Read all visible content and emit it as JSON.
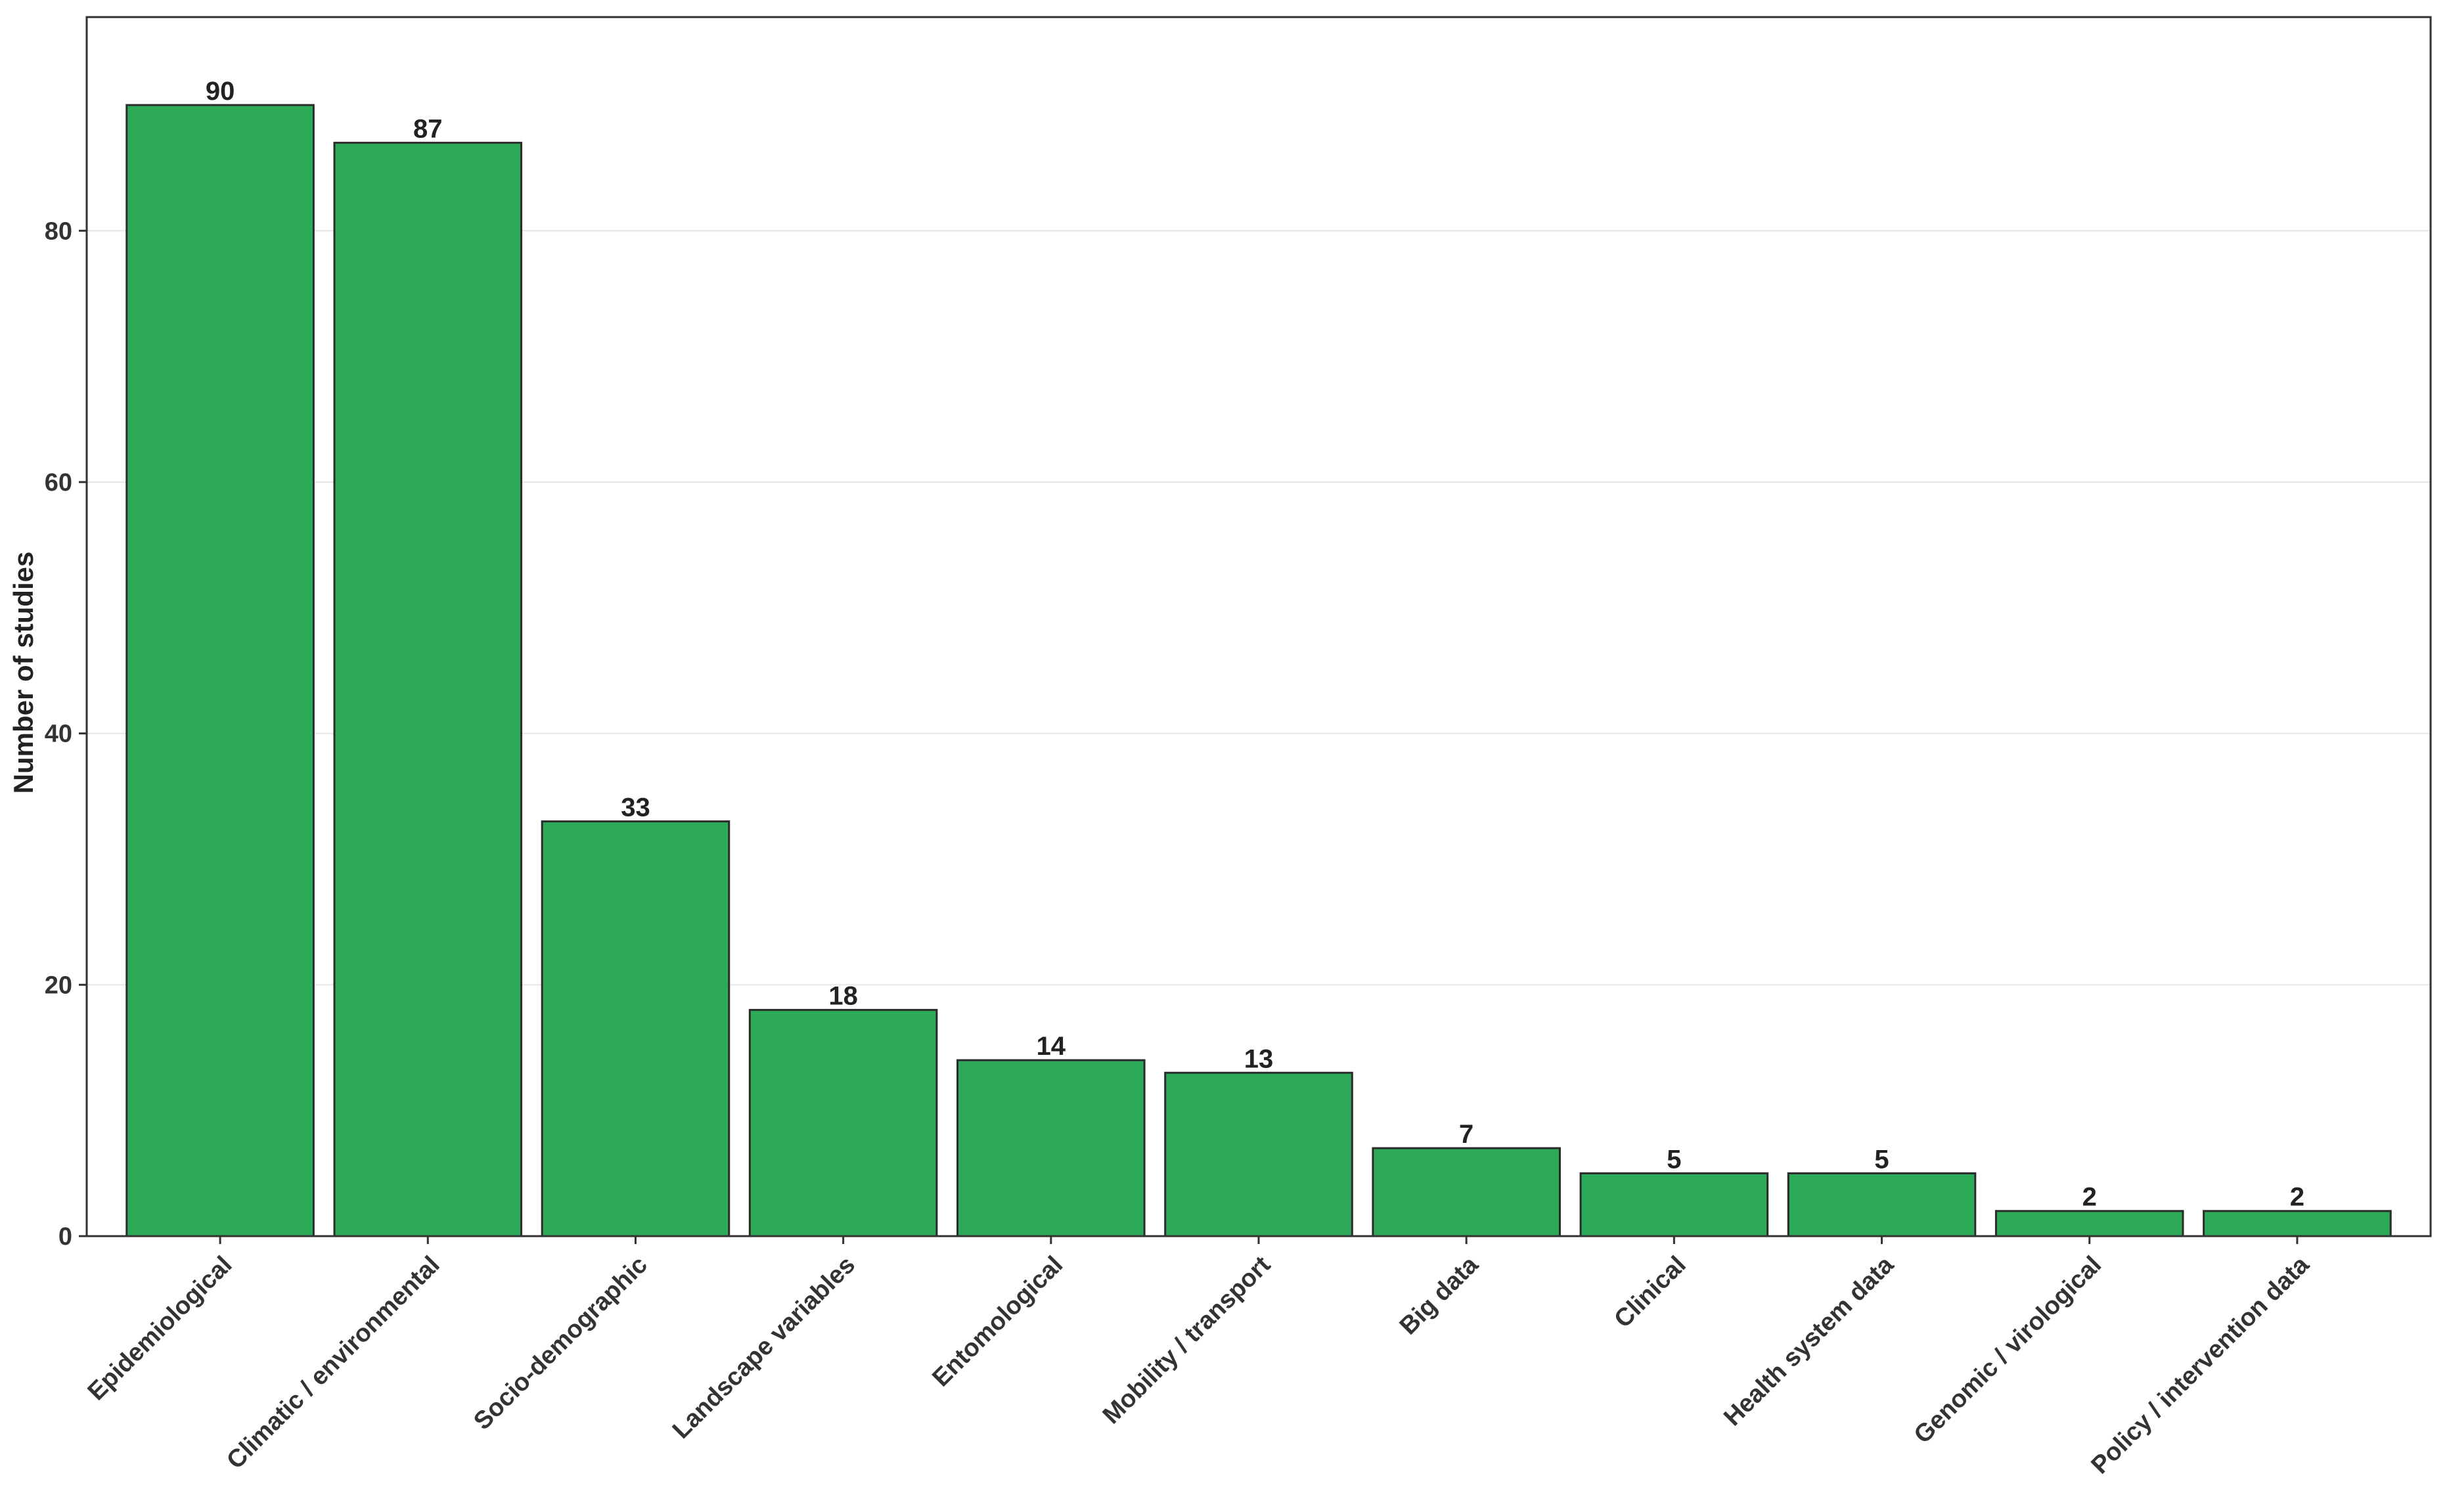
{
  "chart_data": {
    "type": "bar",
    "title": "",
    "xlabel": "",
    "ylabel": "Number of studies",
    "categories": [
      "Epidemiological",
      "Climatic / environmental",
      "Socio-demographic",
      "Landscape variables",
      "Entomological",
      "Mobility / transport",
      "Big data",
      "Clinical",
      "Health system data",
      "Genomic / virological",
      "Policy / intervention data"
    ],
    "values": [
      90,
      87,
      33,
      18,
      14,
      13,
      7,
      5,
      5,
      2,
      2
    ],
    "ylim": [
      0,
      97
    ],
    "yticks": [
      0,
      20,
      40,
      60,
      80
    ],
    "grid": "horizontal",
    "colors": {
      "bar_fill": "#2daa58",
      "bar_stroke": "#2b2b2b",
      "grid": "#e6e6e6",
      "frame": "#333333"
    }
  }
}
